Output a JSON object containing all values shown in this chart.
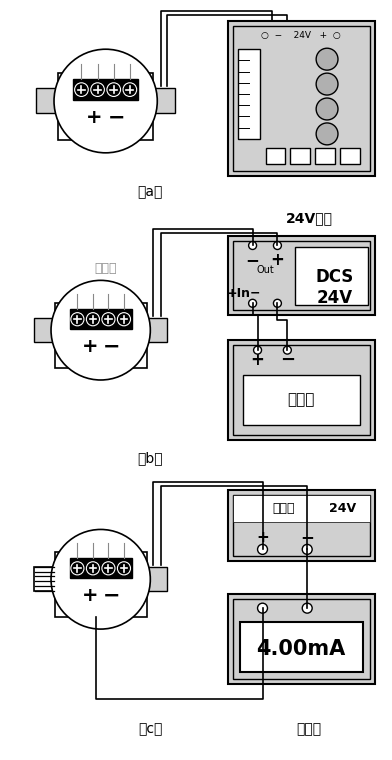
{
  "bg_color": "#ffffff",
  "lc": "#000000",
  "gray1": "#d0d0d0",
  "gray2": "#b0b0b0",
  "gray3": "#909090",
  "label_a": "（a）",
  "label_b": "（b）",
  "label_c": "（c）",
  "label_dianliubiao": "电流表",
  "transmitter_label": "变送器",
  "power_label_b": "24V电源",
  "dcs_label": "DCS\n24V",
  "display_label": "显示器",
  "safety_label": "安全栅",
  "safety_label2": "24V",
  "meter_label": "4.00mA",
  "v24_label": "24V",
  "indicator_top_label": "○  −   24V   +  ○"
}
